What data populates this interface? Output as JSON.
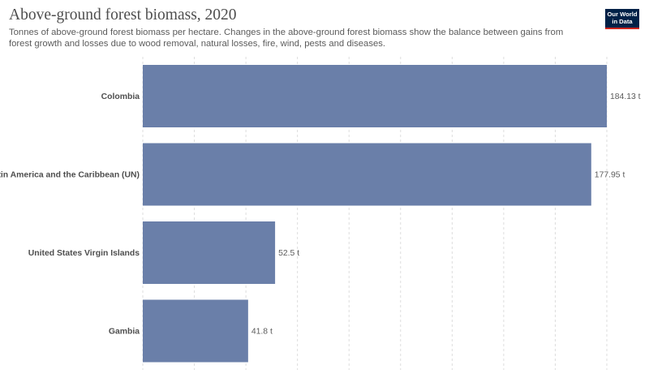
{
  "chart_data": {
    "type": "bar",
    "orientation": "horizontal",
    "title": "Above-ground forest biomass, 2020",
    "subtitle": "Tonnes of above-ground forest biomass per hectare. Changes in the above-ground forest biomass show the balance between gains from forest growth and losses due to wood removal, natural losses, fire, wind, pests and diseases.",
    "categories": [
      "Colombia",
      "Latin America and the Caribbean (UN)",
      "United States Virgin Islands",
      "Gambia"
    ],
    "values": [
      184.13,
      177.95,
      52.5,
      41.8
    ],
    "value_labels": [
      "184.13 t",
      "177.95 t",
      "52.5 t",
      "41.8 t"
    ],
    "xlim": [
      0,
      184.13
    ],
    "grid": true,
    "bar_color": "#6a7fa9"
  },
  "logo": {
    "line1": "Our World",
    "line2": "in Data",
    "bg_color": "#002147",
    "accent_color": "#ce261e"
  }
}
